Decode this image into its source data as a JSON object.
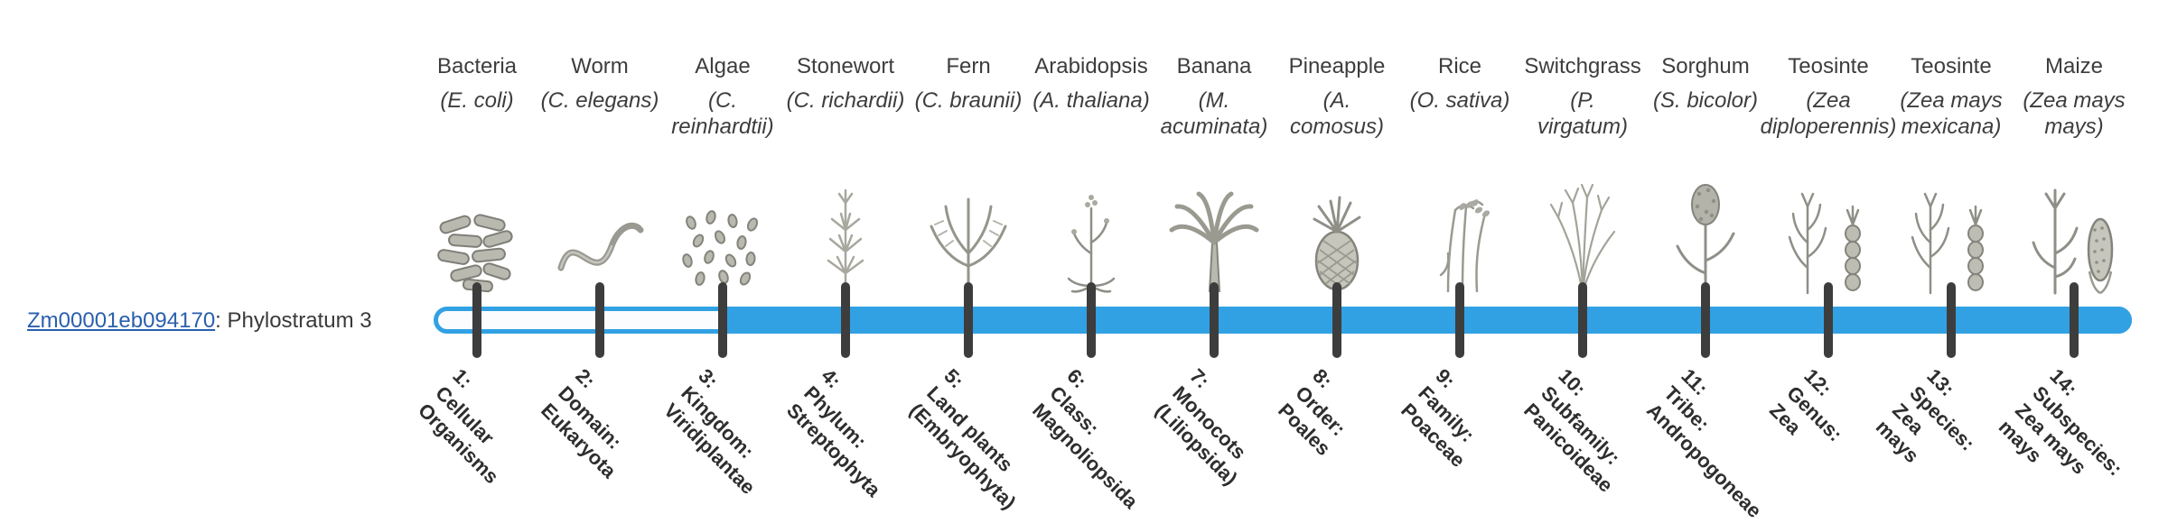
{
  "colors": {
    "bar_blue": "#31a1e3",
    "tick_dark": "#3d3d3d",
    "link_blue": "#2a5fad",
    "text_dark": "#3a3a3a"
  },
  "gene": {
    "id": "Zm00001eb094170",
    "suffix": ": Phylostratum 3",
    "phylostratum": 3
  },
  "columns": [
    {
      "number": 1,
      "organism": "Bacteria",
      "latin": "(E. coli)",
      "icon": "bacteria-icon",
      "label": "1:\nCellular\nOrganisms"
    },
    {
      "number": 2,
      "organism": "Worm",
      "latin": "(C. elegans)",
      "icon": "worm-icon",
      "label": "2:\nDomain:\nEukaryota"
    },
    {
      "number": 3,
      "organism": "Algae",
      "latin": "(C.\nreinhardtii)",
      "icon": "algae-icon",
      "label": "3:\nKingdom:\nViridiplantae"
    },
    {
      "number": 4,
      "organism": "Stonewort",
      "latin": "(C. richardii)",
      "icon": "stonewort-icon",
      "label": "4:\nPhylum:\nStreptophyta"
    },
    {
      "number": 5,
      "organism": "Fern",
      "latin": "(C. braunii)",
      "icon": "fern-icon",
      "label": "5:\nLand plants\n(Embryophyta)"
    },
    {
      "number": 6,
      "organism": "Arabidopsis",
      "latin": "(A. thaliana)",
      "icon": "arabidopsis-icon",
      "label": "6:\nClass:\nMagnoliopsida"
    },
    {
      "number": 7,
      "organism": "Banana",
      "latin": "(M.\nacuminata)",
      "icon": "banana-icon",
      "label": "7:\nMonocots\n(Liliopsida)"
    },
    {
      "number": 8,
      "organism": "Pineapple",
      "latin": "(A.\ncomosus)",
      "icon": "pineapple-icon",
      "label": "8:\nOrder:\nPoales"
    },
    {
      "number": 9,
      "organism": "Rice",
      "latin": "(O. sativa)",
      "icon": "rice-icon",
      "label": "9:\nFamily:\nPoaceae"
    },
    {
      "number": 10,
      "organism": "Switchgrass",
      "latin": "(P.\nvirgatum)",
      "icon": "switchgrass-icon",
      "label": "10:\nSubfamily:\nPanicoideae"
    },
    {
      "number": 11,
      "organism": "Sorghum",
      "latin": "(S. bicolor)",
      "icon": "sorghum-icon",
      "label": "11:\nTribe:\nAndropogoneae"
    },
    {
      "number": 12,
      "organism": "Teosinte",
      "latin": "(Zea\ndiploperennis)",
      "icon": "teosinte-icon",
      "label": "12:\nGenus:\nZea"
    },
    {
      "number": 13,
      "organism": "Teosinte",
      "latin": "(Zea mays\nmexicana)",
      "icon": "teosinte-icon",
      "label": "13:\nSpecies:\nZea\nmays"
    },
    {
      "number": 14,
      "organism": "Maize",
      "latin": "(Zea mays\nmays)",
      "icon": "maize-icon",
      "label": "14:\nSubspecies:\nZea mays\nmays"
    }
  ]
}
